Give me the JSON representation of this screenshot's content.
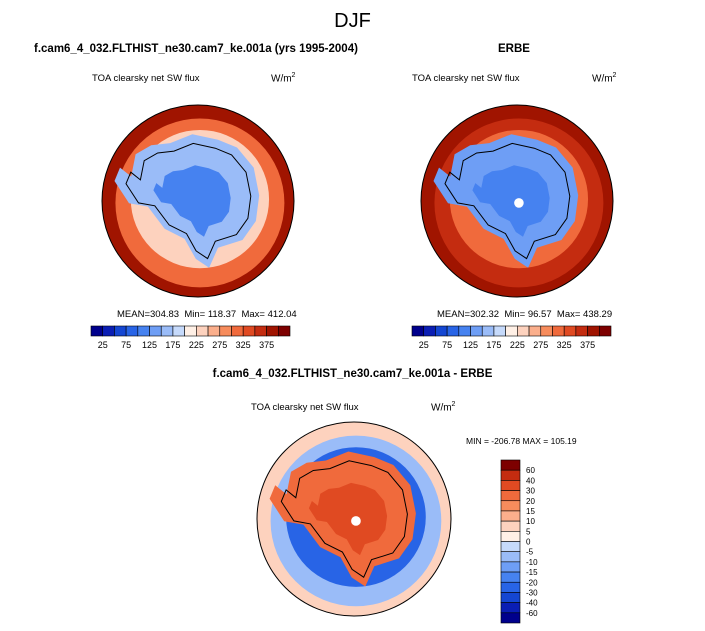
{
  "page": {
    "title": "DJF",
    "left_title": "f.cam6_4_032.FLTHIST_ne30.cam7_ke.001a (yrs 1995-2004)",
    "right_title": "ERBE",
    "diff_title": "f.cam6_4_032.FLTHIST_ne30.cam7_ke.001a - ERBE"
  },
  "chart_data": [
    {
      "type": "heatmap",
      "projection": "south-polar-stereographic",
      "dataset": "f.cam6_4_032.FLTHIST_ne30.cam7_ke.001a (yrs 1995-2004)",
      "variable": "TOA clearsky net SW flux",
      "units_text": "W/m",
      "units_exponent": "2",
      "stats": {
        "mean_label": "MEAN=",
        "mean": "304.83",
        "min_label": "Min=",
        "min": "118.37",
        "max_label": "Max=",
        "max": "412.04"
      },
      "colorbar": {
        "orientation": "horizontal",
        "ticks": [
          "25",
          "75",
          "125",
          "175",
          "225",
          "275",
          "325",
          "375"
        ]
      },
      "regions": {
        "antarctic_interior": 120,
        "antarctic_coast": 160,
        "sea_ice_zone": 240,
        "outer_ring": 320,
        "open_ocean": 380
      }
    },
    {
      "type": "heatmap",
      "projection": "south-polar-stereographic",
      "dataset": "ERBE",
      "variable": "TOA clearsky net SW flux",
      "units_text": "W/m",
      "units_exponent": "2",
      "stats": {
        "mean_label": "MEAN=",
        "mean": "302.32",
        "min_label": "Min=",
        "min": "96.57",
        "max_label": "Max=",
        "max": "438.29"
      },
      "colorbar": {
        "orientation": "horizontal",
        "ticks": [
          "25",
          "75",
          "125",
          "175",
          "225",
          "275",
          "325",
          "375"
        ]
      },
      "regions": {
        "antarctic_interior": 100,
        "antarctic_coast": 130,
        "sea_ice_zone": 300,
        "outer_ring": 360,
        "open_ocean": 390
      },
      "missing_data": "pole hole"
    },
    {
      "type": "heatmap",
      "projection": "south-polar-stereographic",
      "dataset": "f.cam6_4_032.FLTHIST_ne30.cam7_ke.001a - ERBE",
      "variable": "TOA clearsky net SW flux",
      "units_text": "W/m",
      "units_exponent": "2",
      "stats": {
        "min_label": "MIN =",
        "min": "-206.78",
        "max_label": "MAX =",
        "max": "105.19"
      },
      "colorbar": {
        "orientation": "vertical",
        "ticks": [
          "60",
          "40",
          "30",
          "20",
          "15",
          "10",
          "5",
          "0",
          "-5",
          "-10",
          "-15",
          "-20",
          "-30",
          "-40",
          "-60"
        ]
      },
      "regions": {
        "antarctic_interior": 30,
        "antarctic_coast": 20,
        "sea_ice_zone": -30,
        "outer_ring": -10,
        "open_ocean": 5
      },
      "missing_data": "pole hole"
    }
  ],
  "palettes": {
    "full": [
      "#00008c",
      "#0a1eb4",
      "#1446d2",
      "#2864e6",
      "#4682f0",
      "#6e9ef5",
      "#9abcf8",
      "#c6dafb",
      "#fff0e6",
      "#fdd2be",
      "#fbaf8c",
      "#f78c5c",
      "#f06a3c",
      "#e04a22",
      "#c42c10",
      "#a01400",
      "#7d0000"
    ],
    "blue_red": [
      "#00008c",
      "#0a1eb4",
      "#1446d2",
      "#2864e6",
      "#4682f0",
      "#6e9ef5",
      "#9abcf8",
      "#c6dafb",
      "#fff0e6",
      "#fdd2be",
      "#fbaf8c",
      "#f78c5c",
      "#f06a3c",
      "#e04a22",
      "#c42c10",
      "#7d0000"
    ]
  }
}
